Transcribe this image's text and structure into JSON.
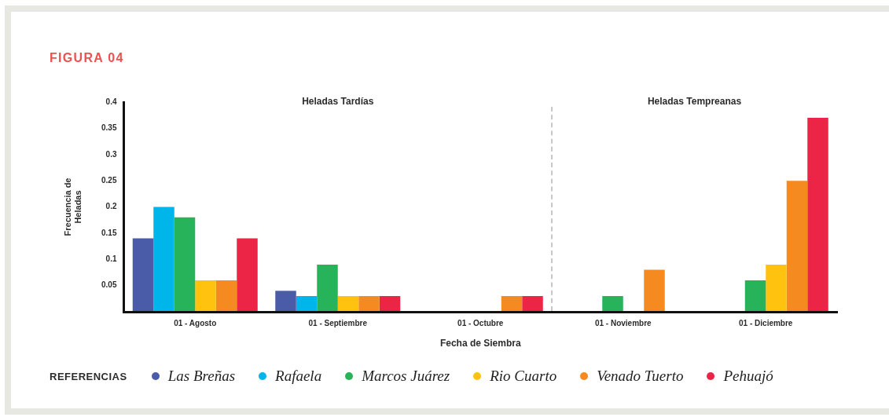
{
  "chart_data": {
    "type": "bar",
    "title": "FIGURA 04",
    "xlabel": "Fecha de Siembra",
    "ylabel": "Frecuencia de Heladas",
    "categories": [
      "01 - Agosto",
      "01 - Septiembre",
      "01 - Octubre",
      "01 - Noviembre",
      "01 - Diciembre"
    ],
    "series": [
      {
        "name": "Las Breñas",
        "color": "#4a5ba8",
        "values": [
          0.14,
          0.04,
          0,
          0,
          0
        ]
      },
      {
        "name": "Rafaela",
        "color": "#00b5e9",
        "values": [
          0.2,
          0.03,
          0,
          0,
          0
        ]
      },
      {
        "name": "Marcos Juárez",
        "color": "#27b35a",
        "values": [
          0.18,
          0.09,
          0,
          0.03,
          0.06
        ]
      },
      {
        "name": "Rio Cuarto",
        "color": "#ffc20e",
        "values": [
          0.06,
          0.03,
          0,
          0,
          0.09
        ]
      },
      {
        "name": "Venado Tuerto",
        "color": "#f58a21",
        "values": [
          0.06,
          0.03,
          0.03,
          0.08,
          0.25
        ]
      },
      {
        "name": "Pehuajó",
        "color": "#ec2445",
        "values": [
          0.14,
          0.03,
          0.03,
          0,
          0.37
        ]
      }
    ],
    "ylim": [
      0,
      0.4
    ],
    "yticks": [
      0.05,
      0.1,
      0.15,
      0.2,
      0.25,
      0.3,
      0.35,
      0.4
    ],
    "annotations": [
      "Heladas Tardías",
      "Heladas Tempreanas"
    ],
    "legend": "bottom",
    "legend_title": "REFERENCIAS"
  }
}
